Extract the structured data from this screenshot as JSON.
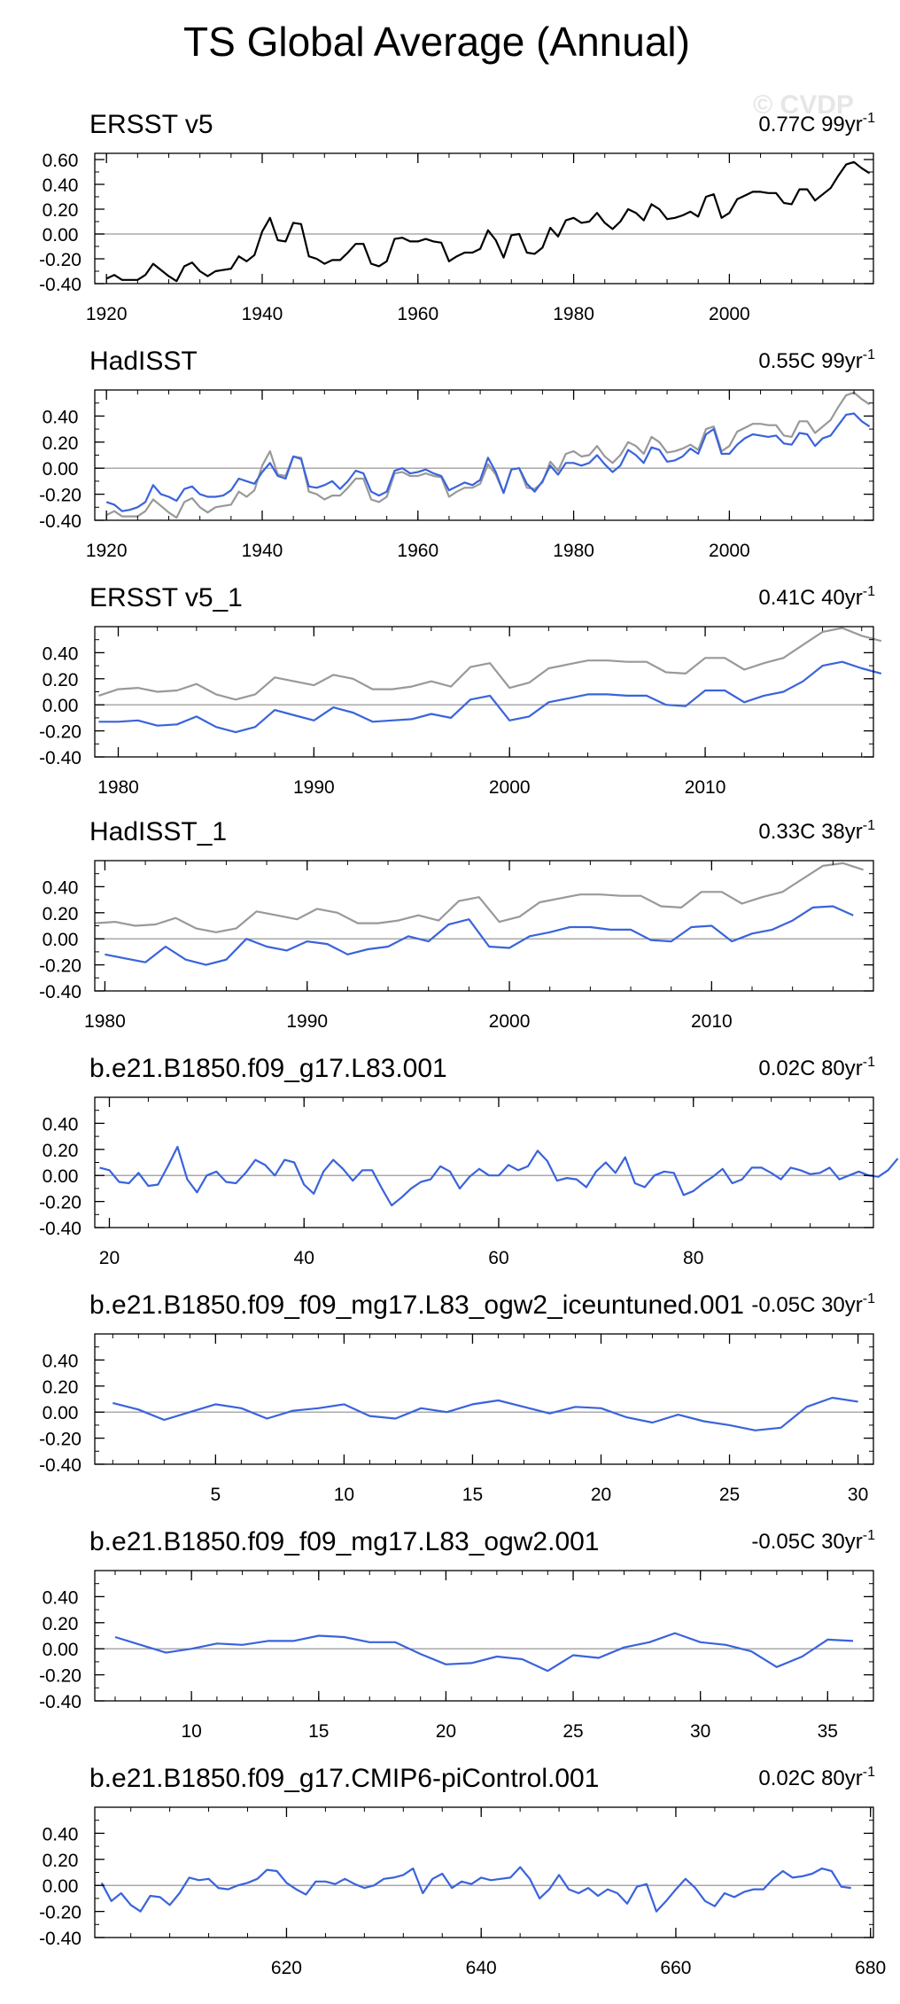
{
  "title": "TS Global Average (Annual)",
  "watermark": "© CVDP",
  "colors": {
    "obs": "#000000",
    "ref": "#999999",
    "model": "#3a63dc",
    "zero": "#aaaaaa",
    "frame": "#000000"
  },
  "chart_data": [
    {
      "type": "line",
      "title": "ERSST v5",
      "trend_label": "0.77C 99yr",
      "trend_sup": "-1",
      "xlim": [
        1918.5,
        2018.5
      ],
      "ylim": [
        -0.4,
        0.65
      ],
      "yticks": [
        -0.4,
        -0.2,
        0.0,
        0.2,
        0.4,
        0.6
      ],
      "ytick_labels": [
        "-0.40",
        "-0.20",
        "0.00",
        "0.20",
        "0.40",
        "0.60"
      ],
      "xticks": [
        1920,
        1940,
        1960,
        1980,
        2000
      ],
      "xtick_labels": [
        "1920",
        "1940",
        "1960",
        "1980",
        "2000"
      ],
      "series": [
        {
          "name": "ERSST v5",
          "color": "obs",
          "x0": 1920,
          "values": [
            -0.36,
            -0.33,
            -0.37,
            -0.37,
            -0.37,
            -0.33,
            -0.24,
            -0.29,
            -0.34,
            -0.38,
            -0.26,
            -0.23,
            -0.3,
            -0.34,
            -0.3,
            -0.29,
            -0.28,
            -0.18,
            -0.22,
            -0.17,
            0.02,
            0.13,
            -0.05,
            -0.06,
            0.09,
            0.08,
            -0.18,
            -0.2,
            -0.24,
            -0.21,
            -0.21,
            -0.15,
            -0.08,
            -0.08,
            -0.24,
            -0.26,
            -0.22,
            -0.04,
            -0.03,
            -0.06,
            -0.06,
            -0.04,
            -0.06,
            -0.07,
            -0.22,
            -0.18,
            -0.15,
            -0.15,
            -0.12,
            0.03,
            -0.05,
            -0.19,
            -0.01,
            0.0,
            -0.15,
            -0.16,
            -0.11,
            0.05,
            -0.02,
            0.11,
            0.13,
            0.09,
            0.1,
            0.17,
            0.09,
            0.04,
            0.1,
            0.2,
            0.17,
            0.11,
            0.24,
            0.2,
            0.12,
            0.13,
            0.15,
            0.18,
            0.14,
            0.3,
            0.32,
            0.13,
            0.17,
            0.28,
            0.31,
            0.34,
            0.34,
            0.33,
            0.33,
            0.25,
            0.24,
            0.36,
            0.36,
            0.27,
            0.32,
            0.37,
            0.47,
            0.56,
            0.58,
            0.53,
            0.49
          ]
        }
      ]
    },
    {
      "type": "line",
      "title": "HadISST",
      "trend_label": "0.55C 99yr",
      "trend_sup": "-1",
      "xlim": [
        1918.5,
        2018.5
      ],
      "ylim": [
        -0.4,
        0.6
      ],
      "yticks": [
        -0.4,
        -0.2,
        0.0,
        0.2,
        0.4
      ],
      "ytick_labels": [
        "-0.40",
        "-0.20",
        "0.00",
        "0.20",
        "0.40"
      ],
      "xticks": [
        1920,
        1940,
        1960,
        1980,
        2000
      ],
      "xtick_labels": [
        "1920",
        "1940",
        "1960",
        "1980",
        "2000"
      ],
      "series": [
        {
          "name": "ERSST v5",
          "color": "ref",
          "x0": 1920,
          "values": [
            -0.36,
            -0.33,
            -0.37,
            -0.37,
            -0.37,
            -0.33,
            -0.24,
            -0.29,
            -0.34,
            -0.38,
            -0.26,
            -0.23,
            -0.3,
            -0.34,
            -0.3,
            -0.29,
            -0.28,
            -0.18,
            -0.22,
            -0.17,
            0.02,
            0.13,
            -0.05,
            -0.06,
            0.09,
            0.08,
            -0.18,
            -0.2,
            -0.24,
            -0.21,
            -0.21,
            -0.15,
            -0.08,
            -0.08,
            -0.24,
            -0.26,
            -0.22,
            -0.04,
            -0.03,
            -0.06,
            -0.06,
            -0.04,
            -0.06,
            -0.07,
            -0.22,
            -0.18,
            -0.15,
            -0.15,
            -0.12,
            0.03,
            -0.05,
            -0.19,
            -0.01,
            0.0,
            -0.15,
            -0.16,
            -0.11,
            0.05,
            -0.02,
            0.11,
            0.13,
            0.09,
            0.1,
            0.17,
            0.09,
            0.04,
            0.1,
            0.2,
            0.17,
            0.11,
            0.24,
            0.2,
            0.12,
            0.13,
            0.15,
            0.18,
            0.14,
            0.3,
            0.32,
            0.13,
            0.17,
            0.28,
            0.31,
            0.34,
            0.34,
            0.33,
            0.33,
            0.25,
            0.24,
            0.36,
            0.36,
            0.27,
            0.32,
            0.37,
            0.47,
            0.56,
            0.58,
            0.53,
            0.49
          ]
        },
        {
          "name": "HadISST",
          "color": "model",
          "x0": 1920,
          "values": [
            -0.26,
            -0.28,
            -0.33,
            -0.32,
            -0.3,
            -0.26,
            -0.13,
            -0.2,
            -0.22,
            -0.25,
            -0.16,
            -0.14,
            -0.2,
            -0.22,
            -0.22,
            -0.21,
            -0.17,
            -0.08,
            -0.1,
            -0.12,
            -0.03,
            0.04,
            -0.06,
            -0.08,
            0.09,
            0.07,
            -0.14,
            -0.15,
            -0.13,
            -0.1,
            -0.16,
            -0.1,
            -0.02,
            -0.04,
            -0.18,
            -0.21,
            -0.18,
            -0.02,
            0.0,
            -0.04,
            -0.03,
            -0.01,
            -0.04,
            -0.06,
            -0.17,
            -0.14,
            -0.11,
            -0.13,
            -0.09,
            0.08,
            -0.03,
            -0.19,
            -0.01,
            0.0,
            -0.12,
            -0.18,
            -0.1,
            0.02,
            -0.05,
            0.04,
            0.04,
            0.02,
            0.04,
            0.1,
            0.03,
            -0.03,
            0.02,
            0.14,
            0.1,
            0.04,
            0.16,
            0.14,
            0.05,
            0.06,
            0.09,
            0.15,
            0.11,
            0.26,
            0.3,
            0.11,
            0.11,
            0.18,
            0.23,
            0.26,
            0.25,
            0.24,
            0.25,
            0.19,
            0.18,
            0.27,
            0.26,
            0.17,
            0.23,
            0.25,
            0.33,
            0.41,
            0.42,
            0.36,
            0.32
          ]
        }
      ]
    },
    {
      "type": "line",
      "title": "ERSST v5_1",
      "trend_label": "0.41C 40yr",
      "trend_sup": "-1",
      "xlim": [
        1978.8,
        2018.6
      ],
      "ylim": [
        -0.4,
        0.6
      ],
      "yticks": [
        -0.4,
        -0.2,
        0.0,
        0.2,
        0.4
      ],
      "ytick_labels": [
        "-0.40",
        "-0.20",
        "0.00",
        "0.20",
        "0.40"
      ],
      "xticks": [
        1980,
        1990,
        2000,
        2010
      ],
      "xtick_labels": [
        "1980",
        "1990",
        "2000",
        "2010"
      ],
      "series": [
        {
          "name": "ERSST v5",
          "color": "ref",
          "x0": 1979,
          "values": [
            0.07,
            0.12,
            0.13,
            0.1,
            0.11,
            0.16,
            0.08,
            0.04,
            0.08,
            0.21,
            0.18,
            0.15,
            0.23,
            0.2,
            0.12,
            0.12,
            0.14,
            0.18,
            0.14,
            0.29,
            0.32,
            0.13,
            0.17,
            0.28,
            0.31,
            0.34,
            0.34,
            0.33,
            0.33,
            0.25,
            0.24,
            0.36,
            0.36,
            0.27,
            0.32,
            0.36,
            0.46,
            0.56,
            0.59,
            0.53,
            0.49
          ]
        },
        {
          "name": "ERSST v5_1",
          "color": "model",
          "x0": 1979,
          "values": [
            -0.13,
            -0.13,
            -0.12,
            -0.16,
            -0.15,
            -0.09,
            -0.17,
            -0.21,
            -0.17,
            -0.04,
            -0.08,
            -0.12,
            -0.02,
            -0.06,
            -0.13,
            -0.12,
            -0.11,
            -0.07,
            -0.1,
            0.04,
            0.07,
            -0.12,
            -0.09,
            0.02,
            0.05,
            0.08,
            0.08,
            0.07,
            0.07,
            0.0,
            -0.01,
            0.11,
            0.11,
            0.02,
            0.07,
            0.1,
            0.18,
            0.3,
            0.33,
            0.28,
            0.24
          ]
        }
      ]
    },
    {
      "type": "line",
      "title": "HadISST_1",
      "trend_label": "0.33C 38yr",
      "trend_sup": "-1",
      "xlim": [
        1979.5,
        2018.0
      ],
      "ylim": [
        -0.4,
        0.6
      ],
      "yticks": [
        -0.4,
        -0.2,
        0.0,
        0.2,
        0.4
      ],
      "ytick_labels": [
        "-0.40",
        "-0.20",
        "0.00",
        "0.20",
        "0.40"
      ],
      "xticks": [
        1980,
        1990,
        2000,
        2010
      ],
      "xtick_labels": [
        "1980",
        "1990",
        "2000",
        "2010"
      ],
      "series": [
        {
          "name": "ERSST v5",
          "color": "ref",
          "x0": 1979.5,
          "values": [
            0.12,
            0.13,
            0.1,
            0.11,
            0.16,
            0.08,
            0.05,
            0.08,
            0.21,
            0.18,
            0.15,
            0.23,
            0.2,
            0.12,
            0.12,
            0.14,
            0.18,
            0.14,
            0.29,
            0.32,
            0.13,
            0.17,
            0.28,
            0.31,
            0.34,
            0.34,
            0.33,
            0.33,
            0.25,
            0.24,
            0.36,
            0.36,
            0.27,
            0.32,
            0.36,
            0.46,
            0.56,
            0.58,
            0.53
          ]
        },
        {
          "name": "HadISST_1",
          "color": "model",
          "x0": 1980,
          "values": [
            -0.12,
            -0.15,
            -0.18,
            -0.06,
            -0.16,
            -0.2,
            -0.16,
            0.0,
            -0.06,
            -0.09,
            -0.02,
            -0.04,
            -0.12,
            -0.08,
            -0.06,
            0.02,
            -0.02,
            0.11,
            0.15,
            -0.06,
            -0.07,
            0.02,
            0.05,
            0.09,
            0.09,
            0.07,
            0.07,
            -0.01,
            -0.02,
            0.09,
            0.1,
            -0.02,
            0.04,
            0.07,
            0.14,
            0.24,
            0.25,
            0.18
          ]
        }
      ]
    },
    {
      "type": "line",
      "title": "b.e21.B1850.f09_g17.L83.001",
      "trend_label": "0.02C 80yr",
      "trend_sup": "-1",
      "xlim": [
        18.5,
        98.5
      ],
      "ylim": [
        -0.4,
        0.6
      ],
      "yticks": [
        -0.4,
        -0.2,
        0.0,
        0.2,
        0.4
      ],
      "ytick_labels": [
        "-0.40",
        "-0.20",
        "0.00",
        "0.20",
        "0.40"
      ],
      "xticks": [
        20,
        40,
        60,
        80
      ],
      "xtick_labels": [
        "20",
        "40",
        "60",
        "80"
      ],
      "series": [
        {
          "name": "b.e21.B1850.f09_g17.L83.001",
          "color": "model",
          "x0": 19,
          "values": [
            0.06,
            0.04,
            -0.05,
            -0.06,
            0.02,
            -0.08,
            -0.07,
            0.07,
            0.22,
            -0.03,
            -0.13,
            0.0,
            0.03,
            -0.05,
            -0.06,
            0.02,
            0.12,
            0.08,
            0.0,
            0.12,
            0.1,
            -0.07,
            -0.14,
            0.03,
            0.12,
            0.05,
            -0.04,
            0.04,
            0.04,
            -0.1,
            -0.23,
            -0.17,
            -0.1,
            -0.05,
            -0.03,
            0.07,
            0.03,
            -0.1,
            -0.01,
            0.05,
            0.0,
            0.0,
            0.08,
            0.04,
            0.07,
            0.19,
            0.11,
            -0.04,
            -0.02,
            -0.03,
            -0.09,
            0.03,
            0.1,
            0.02,
            0.14,
            -0.06,
            -0.09,
            0.0,
            0.03,
            0.02,
            -0.15,
            -0.12,
            -0.06,
            -0.01,
            0.05,
            -0.06,
            -0.03,
            0.06,
            0.06,
            0.02,
            -0.03,
            0.06,
            0.04,
            0.01,
            0.02,
            0.06,
            -0.03,
            0.0,
            0.03,
            0.0,
            -0.01,
            0.04,
            0.13
          ]
        }
      ]
    },
    {
      "type": "line",
      "title": "b.e21.B1850.f09_f09_mg17.L83_ogw2_iceuntuned.001",
      "trend_label": "-0.05C 30yr",
      "trend_sup": "-1",
      "xlim": [
        0.3,
        30.6
      ],
      "ylim": [
        -0.4,
        0.6
      ],
      "yticks": [
        -0.4,
        -0.2,
        0.0,
        0.2,
        0.4
      ],
      "ytick_labels": [
        "-0.40",
        "-0.20",
        "0.00",
        "0.20",
        "0.40"
      ],
      "xticks": [
        5,
        10,
        15,
        20,
        25,
        30
      ],
      "xtick_labels": [
        "5",
        "10",
        "15",
        "20",
        "25",
        "30"
      ],
      "series": [
        {
          "name": "b.e21.B1850.f09_f09_mg17.L83_ogw2_iceuntuned.001",
          "color": "model",
          "x0": 1,
          "values": [
            0.07,
            0.02,
            -0.06,
            0.0,
            0.06,
            0.03,
            -0.05,
            0.01,
            0.03,
            0.06,
            -0.03,
            -0.05,
            0.03,
            0.0,
            0.06,
            0.09,
            0.04,
            -0.01,
            0.04,
            0.03,
            -0.04,
            -0.08,
            -0.02,
            -0.07,
            -0.1,
            -0.14,
            -0.12,
            0.04,
            0.11,
            0.08
          ]
        }
      ]
    },
    {
      "type": "line",
      "title": "b.e21.B1850.f09_f09_mg17.L83_ogw2.001",
      "trend_label": "-0.05C 30yr",
      "trend_sup": "-1",
      "xlim": [
        6.2,
        36.8
      ],
      "ylim": [
        -0.4,
        0.6
      ],
      "yticks": [
        -0.4,
        -0.2,
        0.0,
        0.2,
        0.4
      ],
      "ytick_labels": [
        "-0.40",
        "-0.20",
        "0.00",
        "0.20",
        "0.40"
      ],
      "xticks": [
        10,
        15,
        20,
        25,
        30,
        35
      ],
      "xtick_labels": [
        "10",
        "15",
        "20",
        "25",
        "30",
        "35"
      ],
      "series": [
        {
          "name": "b.e21.B1850.f09_f09_mg17.L83_ogw2.001",
          "color": "model",
          "x0": 7,
          "values": [
            0.09,
            0.03,
            -0.03,
            0.0,
            0.04,
            0.03,
            0.06,
            0.06,
            0.1,
            0.09,
            0.05,
            0.05,
            -0.04,
            -0.12,
            -0.11,
            -0.06,
            -0.08,
            -0.17,
            -0.05,
            -0.07,
            0.01,
            0.05,
            0.12,
            0.05,
            0.03,
            -0.02,
            -0.14,
            -0.06,
            0.07,
            0.06
          ]
        }
      ]
    },
    {
      "type": "line",
      "title": "b.e21.B1850.f09_g17.CMIP6-piControl.001",
      "trend_label": "0.02C 80yr",
      "trend_sup": "-1",
      "xlim": [
        600.3,
        680.3
      ],
      "ylim": [
        -0.4,
        0.6
      ],
      "yticks": [
        -0.4,
        -0.2,
        0.0,
        0.2,
        0.4
      ],
      "ytick_labels": [
        "-0.40",
        "-0.20",
        "0.00",
        "0.20",
        "0.40"
      ],
      "xticks": [
        620,
        640,
        660,
        680
      ],
      "xtick_labels": [
        "620",
        "640",
        "660",
        "680"
      ],
      "series": [
        {
          "name": "b.e21.B1850.f09_g17.CMIP6-piControl.001",
          "color": "model",
          "x0": 601,
          "values": [
            0.02,
            -0.12,
            -0.06,
            -0.15,
            -0.2,
            -0.08,
            -0.09,
            -0.15,
            -0.06,
            0.06,
            0.04,
            0.05,
            -0.02,
            -0.03,
            0.0,
            0.02,
            0.05,
            0.12,
            0.11,
            0.02,
            -0.03,
            -0.07,
            0.03,
            0.03,
            0.01,
            0.05,
            0.01,
            -0.02,
            0.0,
            0.05,
            0.06,
            0.08,
            0.13,
            -0.06,
            0.05,
            0.09,
            -0.02,
            0.03,
            0.01,
            0.06,
            0.04,
            0.05,
            0.06,
            0.14,
            0.05,
            -0.1,
            -0.03,
            0.08,
            -0.03,
            -0.06,
            -0.02,
            -0.08,
            -0.03,
            -0.06,
            -0.14,
            -0.01,
            0.01,
            -0.2,
            -0.12,
            -0.03,
            0.05,
            -0.02,
            -0.12,
            -0.16,
            -0.06,
            -0.09,
            -0.05,
            -0.03,
            -0.03,
            0.05,
            0.11,
            0.06,
            0.07,
            0.09,
            0.13,
            0.11,
            -0.01,
            -0.02
          ]
        }
      ]
    }
  ]
}
